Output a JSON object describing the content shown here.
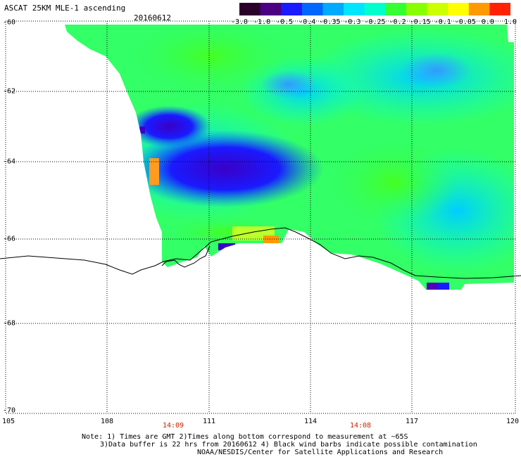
{
  "header": {
    "title": "ASCAT 25KM MLE-1 ascending",
    "date": "20160612"
  },
  "colorbar": {
    "labels": [
      "-3.0",
      "-1.0",
      "-0.5",
      "-0.4",
      "-0.35",
      "-0.3",
      "-0.25",
      "-0.2",
      "-0.15",
      "-0.1",
      "-0.05",
      "0.0",
      "1.0"
    ],
    "colors": [
      "#2a002a",
      "#4b0082",
      "#1a1aff",
      "#0066ff",
      "#00aaff",
      "#00e5ff",
      "#00ffcc",
      "#33ff33",
      "#88ff00",
      "#ccff00",
      "#ffff00",
      "#ff9900",
      "#ff2200"
    ]
  },
  "axes": {
    "lat_labels": [
      "-60",
      "-62",
      "-64",
      "-66",
      "-68",
      "-70"
    ],
    "lon_labels": [
      "105",
      "108",
      "111",
      "114",
      "117",
      "120"
    ],
    "time_labels": [
      "14:09",
      "14:08"
    ]
  },
  "notes": {
    "line1": "Note: 1) Times are GMT 2)Times along bottom correspond to measurement at ~65S",
    "line2": "3)Data buffer is 22 hrs from 20160612 4) Black wind barbs indicate possible contamination",
    "line3": "NOAA/NESDIS/Center for Satellite Applications and Research"
  }
}
